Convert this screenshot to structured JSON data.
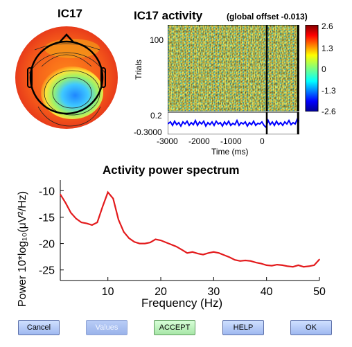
{
  "component": {
    "label": "IC17"
  },
  "erpimage": {
    "title": "IC17 activity",
    "subtitle": "(global offset -0.013)",
    "ylabel": "Trials",
    "xlabel": "Time (ms)",
    "ytick": "100",
    "trace_yticks": [
      "0.2",
      "-0.3000"
    ],
    "xticks": [
      "-3000",
      "-2000",
      "-1000",
      "0"
    ],
    "colorbar_ticks": [
      "2.6",
      "1.3",
      "0",
      "-1.3",
      "-2.6"
    ]
  },
  "spectrum": {
    "title": "Activity power spectrum",
    "xlabel": "Frequency (Hz)",
    "ylabel": "Power 10*log₁₀(μV²/Hz)",
    "yticks": [
      "-10",
      "-15",
      "-20",
      "-25"
    ],
    "xticks": [
      "10",
      "20",
      "30",
      "40",
      "50"
    ],
    "line_color": "#e31a1c"
  },
  "chart_data": {
    "type": "line",
    "title": "Activity power spectrum",
    "xlabel": "Frequency (Hz)",
    "ylabel": "Power 10*log10(μV^2/Hz)",
    "xlim": [
      1,
      50
    ],
    "ylim": [
      -27,
      -8
    ],
    "x": [
      1,
      2,
      3,
      4,
      5,
      6,
      7,
      8,
      9,
      10,
      11,
      12,
      13,
      14,
      15,
      16,
      17,
      18,
      19,
      20,
      21,
      22,
      23,
      24,
      25,
      26,
      27,
      28,
      29,
      30,
      31,
      32,
      33,
      34,
      35,
      36,
      37,
      38,
      39,
      40,
      41,
      42,
      43,
      44,
      45,
      46,
      47,
      48,
      49,
      50
    ],
    "series": [
      {
        "values": [
          -10.7,
          -12.3,
          -14.2,
          -15.3,
          -16.0,
          -16.2,
          -16.5,
          -16.0,
          -13.0,
          -10.3,
          -11.5,
          -15.5,
          -17.8,
          -19.0,
          -19.7,
          -20.0,
          -20.0,
          -19.8,
          -19.2,
          -19.4,
          -19.8,
          -20.2,
          -20.6,
          -21.2,
          -21.8,
          -21.6,
          -21.9,
          -22.1,
          -21.8,
          -21.6,
          -21.8,
          -22.2,
          -22.6,
          -23.1,
          -23.3,
          -23.2,
          -23.3,
          -23.6,
          -23.8,
          -24.1,
          -24.2,
          -24.0,
          -24.1,
          -24.3,
          -24.4,
          -24.1,
          -24.4,
          -24.3,
          -24.1,
          -23.0
        ]
      }
    ]
  },
  "buttons": {
    "cancel": "Cancel",
    "values": "Values",
    "accept": "ACCEPT",
    "help": "HELP",
    "ok": "OK"
  },
  "colors": {
    "button_blue": "#a9c1f5",
    "accept_green": "#b8f0b8",
    "trace_blue": "#0000ff"
  }
}
